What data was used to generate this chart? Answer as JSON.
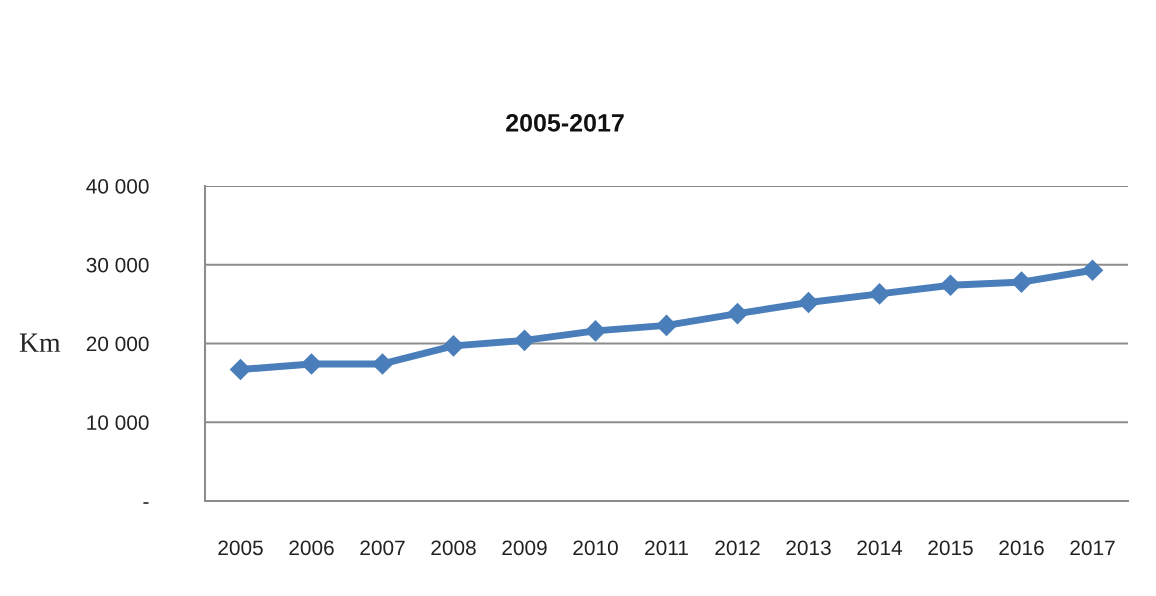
{
  "chart_data": {
    "type": "line",
    "title": "2005-2017",
    "ylabel": "Km",
    "categories": [
      "2005",
      "2006",
      "2007",
      "2008",
      "2009",
      "2010",
      "2011",
      "2012",
      "2013",
      "2014",
      "2015",
      "2016",
      "2017"
    ],
    "series": [
      {
        "color": "#4a7ebb",
        "values": [
          16700,
          17400,
          17400,
          19700,
          20400,
          21600,
          22300,
          23800,
          25200,
          26300,
          27400,
          27800,
          29300
        ]
      }
    ],
    "ylim": [
      0,
      40000
    ],
    "yticks": [
      {
        "value": 0,
        "label": "-"
      },
      {
        "value": 10000,
        "label": "10 000"
      },
      {
        "value": 20000,
        "label": "20 000"
      },
      {
        "value": 30000,
        "label": "30 000"
      },
      {
        "value": 40000,
        "label": "40 000"
      }
    ],
    "grid": "y",
    "marker": "diamond",
    "line_style": "solid"
  }
}
